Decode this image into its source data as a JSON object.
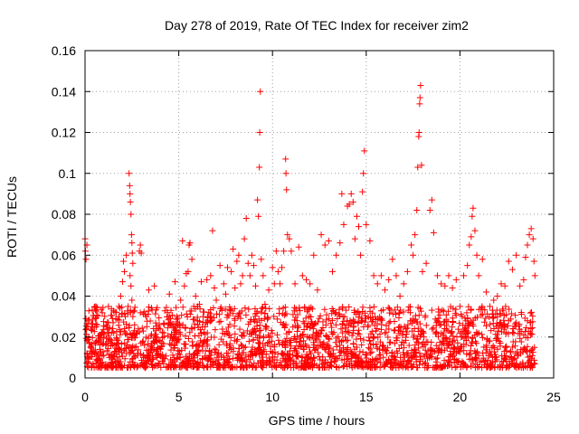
{
  "chart_data": {
    "type": "scatter",
    "title": "Day 278 of 2019, Rate Of TEC Index for receiver zim2",
    "xlabel": "GPS time / hours",
    "ylabel": "ROTI / TECUs",
    "xlim": [
      0,
      25
    ],
    "ylim": [
      0,
      0.16
    ],
    "xticks": [
      0,
      5,
      10,
      15,
      20,
      25
    ],
    "xtick_labels": [
      "0",
      "5",
      "10",
      "15",
      "20",
      "25"
    ],
    "yticks": [
      0,
      0.02,
      0.04,
      0.06,
      0.08,
      0.1,
      0.12,
      0.14,
      0.16
    ],
    "ytick_labels": [
      "0",
      "0.02",
      "0.04",
      "0.06",
      "0.08",
      "0.1",
      "0.12",
      "0.14",
      "0.16"
    ],
    "grid": true,
    "marker": "plus",
    "color": "#ff0000",
    "series": [
      {
        "name": "zim2",
        "points": [
          [
            0.0,
            0.068
          ],
          [
            0.02,
            0.062
          ],
          [
            0.05,
            0.058
          ],
          [
            0.1,
            0.065
          ],
          [
            0.05,
            0.029
          ],
          [
            0.08,
            0.024
          ],
          [
            0.1,
            0.012
          ],
          [
            0.15,
            0.008
          ],
          [
            0.2,
            0.02
          ],
          [
            0.3,
            0.015
          ],
          [
            0.4,
            0.025
          ],
          [
            0.5,
            0.012
          ],
          [
            0.6,
            0.018
          ],
          [
            0.7,
            0.009
          ],
          [
            0.8,
            0.014
          ],
          [
            0.9,
            0.022
          ],
          [
            1.0,
            0.011
          ],
          [
            1.1,
            0.016
          ],
          [
            1.2,
            0.024
          ],
          [
            1.3,
            0.01
          ],
          [
            1.4,
            0.017
          ],
          [
            1.5,
            0.027
          ],
          [
            1.6,
            0.013
          ],
          [
            1.7,
            0.019
          ],
          [
            1.8,
            0.035
          ],
          [
            1.9,
            0.04
          ],
          [
            2.0,
            0.047
          ],
          [
            2.05,
            0.057
          ],
          [
            2.1,
            0.052
          ],
          [
            2.15,
            0.03
          ],
          [
            2.2,
            0.06
          ],
          [
            2.3,
            0.035
          ],
          [
            2.35,
            0.1
          ],
          [
            2.38,
            0.094
          ],
          [
            2.4,
            0.09
          ],
          [
            2.42,
            0.086
          ],
          [
            2.45,
            0.08
          ],
          [
            2.48,
            0.07
          ],
          [
            2.5,
            0.066
          ],
          [
            2.52,
            0.061
          ],
          [
            2.55,
            0.056
          ],
          [
            2.4,
            0.05
          ],
          [
            2.45,
            0.045
          ],
          [
            2.5,
            0.038
          ],
          [
            2.55,
            0.03
          ],
          [
            2.6,
            0.022
          ],
          [
            2.65,
            0.015
          ],
          [
            2.8,
            0.012
          ],
          [
            2.9,
            0.062
          ],
          [
            2.95,
            0.065
          ],
          [
            3.0,
            0.061
          ],
          [
            3.1,
            0.018
          ],
          [
            3.2,
            0.01
          ],
          [
            3.4,
            0.043
          ],
          [
            3.5,
            0.014
          ],
          [
            3.6,
            0.009
          ],
          [
            3.7,
            0.045
          ],
          [
            3.8,
            0.02
          ],
          [
            3.9,
            0.012
          ],
          [
            4.0,
            0.018
          ],
          [
            4.2,
            0.022
          ],
          [
            4.4,
            0.032
          ],
          [
            4.5,
            0.041
          ],
          [
            4.6,
            0.026
          ],
          [
            4.8,
            0.047
          ],
          [
            4.9,
            0.03
          ],
          [
            5.0,
            0.019
          ],
          [
            5.1,
            0.038
          ],
          [
            5.2,
            0.067
          ],
          [
            5.3,
            0.045
          ],
          [
            5.4,
            0.051
          ],
          [
            5.5,
            0.052
          ],
          [
            5.55,
            0.065
          ],
          [
            5.6,
            0.066
          ],
          [
            5.7,
            0.058
          ],
          [
            5.8,
            0.035
          ],
          [
            5.9,
            0.04
          ],
          [
            6.0,
            0.028
          ],
          [
            6.1,
            0.036
          ],
          [
            6.2,
            0.047
          ],
          [
            6.3,
            0.03
          ],
          [
            6.4,
            0.025
          ],
          [
            6.5,
            0.048
          ],
          [
            6.6,
            0.032
          ],
          [
            6.7,
            0.05
          ],
          [
            6.8,
            0.072
          ],
          [
            6.9,
            0.044
          ],
          [
            7.0,
            0.038
          ],
          [
            7.2,
            0.055
          ],
          [
            7.4,
            0.046
          ],
          [
            7.5,
            0.041
          ],
          [
            7.6,
            0.054
          ],
          [
            7.8,
            0.052
          ],
          [
            7.9,
            0.063
          ],
          [
            8.0,
            0.044
          ],
          [
            8.1,
            0.057
          ],
          [
            8.2,
            0.06
          ],
          [
            8.3,
            0.046
          ],
          [
            8.4,
            0.05
          ],
          [
            8.5,
            0.068
          ],
          [
            8.6,
            0.078
          ],
          [
            8.7,
            0.056
          ],
          [
            8.8,
            0.05
          ],
          [
            8.9,
            0.06
          ],
          [
            9.0,
            0.055
          ],
          [
            9.1,
            0.045
          ],
          [
            9.2,
            0.087
          ],
          [
            9.25,
            0.079
          ],
          [
            9.3,
            0.103
          ],
          [
            9.32,
            0.12
          ],
          [
            9.35,
            0.14
          ],
          [
            9.4,
            0.058
          ],
          [
            9.5,
            0.05
          ],
          [
            9.6,
            0.036
          ],
          [
            9.8,
            0.043
          ],
          [
            10.0,
            0.054
          ],
          [
            10.1,
            0.046
          ],
          [
            10.2,
            0.062
          ],
          [
            10.3,
            0.052
          ],
          [
            10.4,
            0.046
          ],
          [
            10.5,
            0.054
          ],
          [
            10.6,
            0.062
          ],
          [
            10.7,
            0.107
          ],
          [
            10.72,
            0.1
          ],
          [
            10.75,
            0.092
          ],
          [
            10.8,
            0.07
          ],
          [
            10.9,
            0.068
          ],
          [
            11.0,
            0.062
          ],
          [
            11.2,
            0.046
          ],
          [
            11.4,
            0.064
          ],
          [
            11.6,
            0.05
          ],
          [
            11.8,
            0.048
          ],
          [
            12.0,
            0.046
          ],
          [
            12.2,
            0.06
          ],
          [
            12.4,
            0.043
          ],
          [
            12.6,
            0.07
          ],
          [
            12.8,
            0.065
          ],
          [
            13.0,
            0.067
          ],
          [
            13.2,
            0.052
          ],
          [
            13.4,
            0.06
          ],
          [
            13.6,
            0.066
          ],
          [
            13.7,
            0.09
          ],
          [
            13.8,
            0.075
          ],
          [
            14.0,
            0.084
          ],
          [
            14.1,
            0.085
          ],
          [
            14.2,
            0.09
          ],
          [
            14.3,
            0.086
          ],
          [
            14.4,
            0.068
          ],
          [
            14.5,
            0.079
          ],
          [
            14.6,
            0.074
          ],
          [
            14.7,
            0.06
          ],
          [
            14.8,
            0.091
          ],
          [
            14.85,
            0.1
          ],
          [
            14.9,
            0.111
          ],
          [
            15.0,
            0.075
          ],
          [
            15.2,
            0.067
          ],
          [
            15.4,
            0.05
          ],
          [
            15.6,
            0.046
          ],
          [
            15.8,
            0.05
          ],
          [
            16.0,
            0.043
          ],
          [
            16.2,
            0.048
          ],
          [
            16.4,
            0.058
          ],
          [
            16.6,
            0.05
          ],
          [
            16.8,
            0.04
          ],
          [
            17.0,
            0.046
          ],
          [
            17.2,
            0.052
          ],
          [
            17.4,
            0.065
          ],
          [
            17.5,
            0.06
          ],
          [
            17.6,
            0.07
          ],
          [
            17.7,
            0.082
          ],
          [
            17.75,
            0.103
          ],
          [
            17.8,
            0.118
          ],
          [
            17.82,
            0.12
          ],
          [
            17.85,
            0.134
          ],
          [
            17.87,
            0.137
          ],
          [
            17.9,
            0.143
          ],
          [
            17.95,
            0.104
          ],
          [
            18.0,
            0.052
          ],
          [
            18.2,
            0.056
          ],
          [
            18.4,
            0.082
          ],
          [
            18.5,
            0.087
          ],
          [
            18.6,
            0.071
          ],
          [
            18.8,
            0.05
          ],
          [
            19.0,
            0.046
          ],
          [
            19.2,
            0.045
          ],
          [
            19.4,
            0.05
          ],
          [
            19.6,
            0.044
          ],
          [
            19.8,
            0.048
          ],
          [
            20.0,
            0.035
          ],
          [
            20.2,
            0.05
          ],
          [
            20.4,
            0.055
          ],
          [
            20.5,
            0.065
          ],
          [
            20.6,
            0.069
          ],
          [
            20.65,
            0.079
          ],
          [
            20.7,
            0.083
          ],
          [
            20.8,
            0.072
          ],
          [
            20.9,
            0.06
          ],
          [
            21.0,
            0.05
          ],
          [
            21.2,
            0.058
          ],
          [
            21.4,
            0.042
          ],
          [
            21.6,
            0.035
          ],
          [
            21.8,
            0.038
          ],
          [
            22.0,
            0.04
          ],
          [
            22.2,
            0.046
          ],
          [
            22.4,
            0.045
          ],
          [
            22.6,
            0.057
          ],
          [
            22.8,
            0.053
          ],
          [
            23.0,
            0.06
          ],
          [
            23.2,
            0.045
          ],
          [
            23.4,
            0.048
          ],
          [
            23.5,
            0.059
          ],
          [
            23.6,
            0.065
          ],
          [
            23.7,
            0.07
          ],
          [
            23.8,
            0.073
          ],
          [
            23.9,
            0.068
          ],
          [
            23.95,
            0.057
          ],
          [
            24.0,
            0.05
          ]
        ]
      }
    ],
    "background_density": {
      "description": "dense band of points across 0-24 h",
      "x_range": [
        0,
        24
      ],
      "y_range": [
        0.005,
        0.035
      ],
      "count": 2200
    }
  }
}
